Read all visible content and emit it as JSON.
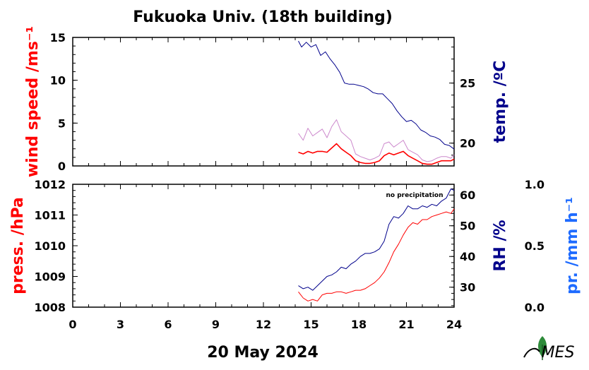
{
  "title": "Fukuoka Univ. (18th building)",
  "date_label": "20 May 2024",
  "top_panel": {
    "left_axis_label": "wind speed /ms⁻¹",
    "right_axis_label": "temp. /ºC"
  },
  "bottom_panel": {
    "left_axis_label": "press. /hPa",
    "right_axis_label": "RH /%",
    "far_axis_label": "pr. /mm h⁻¹",
    "annotation": "no precipitation"
  },
  "colors": {
    "wind": "#ff0000",
    "wind_gust": "#cc88cc",
    "temperature": "#00008b",
    "pressure": "#ff0000",
    "humidity": "#00008b",
    "precipitation": "#1e6bff"
  },
  "logo": {
    "icon": "leaf-logo-icon",
    "text": "MES"
  },
  "chart_data": [
    {
      "type": "line",
      "panel": "top",
      "xlabel": "20 May 2024",
      "x_ticks": [
        "0",
        "3",
        "6",
        "9",
        "12",
        "15",
        "18",
        "21",
        "24"
      ],
      "xlim": [
        0,
        24
      ],
      "y_left": {
        "label": "wind speed /ms⁻¹",
        "lim": [
          0,
          15
        ],
        "ticks": [
          "0",
          "5",
          "10",
          "15"
        ]
      },
      "y_right": {
        "label": "temp. /ºC",
        "lim": [
          18.1,
          28.8
        ],
        "ticks": [
          "20",
          "25"
        ]
      },
      "series": [
        {
          "axis": "left",
          "color": "#cc88cc",
          "width": 1,
          "x": [
            14.2,
            14.5,
            14.8,
            15.1,
            15.4,
            15.7,
            16.0,
            16.3,
            16.6,
            16.9,
            17.2,
            17.5,
            17.8,
            18.1,
            18.4,
            18.7,
            19.0,
            19.3,
            19.6,
            19.9,
            20.2,
            20.5,
            20.8,
            21.1,
            21.4,
            21.7,
            22.0,
            22.3,
            22.6,
            22.9,
            23.2,
            23.5,
            23.8,
            24.0
          ],
          "y": [
            3.8,
            3.0,
            4.4,
            3.5,
            3.9,
            4.3,
            3.3,
            4.6,
            5.4,
            4.0,
            3.5,
            3.0,
            1.4,
            1.1,
            0.9,
            0.7,
            0.9,
            1.2,
            2.6,
            2.8,
            2.2,
            2.6,
            3.0,
            1.9,
            1.6,
            1.3,
            0.7,
            0.5,
            0.6,
            0.9,
            1.1,
            1.1,
            0.9,
            1.3
          ]
        },
        {
          "axis": "left",
          "color": "#ff0000",
          "width": 1.6,
          "x": [
            14.2,
            14.5,
            14.8,
            15.1,
            15.4,
            15.7,
            16.0,
            16.3,
            16.6,
            16.9,
            17.2,
            17.5,
            17.8,
            18.1,
            18.4,
            18.7,
            19.0,
            19.3,
            19.6,
            19.9,
            20.2,
            20.5,
            20.8,
            21.1,
            21.4,
            21.7,
            22.0,
            22.3,
            22.6,
            22.9,
            23.2,
            23.5,
            23.8,
            24.0
          ],
          "y": [
            1.6,
            1.4,
            1.7,
            1.5,
            1.7,
            1.7,
            1.6,
            2.1,
            2.6,
            2.0,
            1.6,
            1.2,
            0.6,
            0.4,
            0.3,
            0.3,
            0.4,
            0.6,
            1.2,
            1.5,
            1.3,
            1.5,
            1.7,
            1.2,
            0.9,
            0.6,
            0.3,
            0.2,
            0.2,
            0.4,
            0.6,
            0.6,
            0.6,
            0.8
          ]
        },
        {
          "axis": "right",
          "color": "#00008b",
          "width": 1,
          "x": [
            14.2,
            14.4,
            14.7,
            15.0,
            15.3,
            15.6,
            15.9,
            16.2,
            16.5,
            16.8,
            17.1,
            17.4,
            17.7,
            18.0,
            18.3,
            18.6,
            18.9,
            19.2,
            19.5,
            19.8,
            20.1,
            20.4,
            20.7,
            21.0,
            21.3,
            21.6,
            21.9,
            22.2,
            22.5,
            22.8,
            23.1,
            23.4,
            23.7,
            24.0
          ],
          "y": [
            28.5,
            28.0,
            28.4,
            28.0,
            28.2,
            27.3,
            27.6,
            27.0,
            26.5,
            25.9,
            25.0,
            24.9,
            24.9,
            24.8,
            24.7,
            24.5,
            24.2,
            24.1,
            24.1,
            23.7,
            23.3,
            22.7,
            22.2,
            21.8,
            21.9,
            21.6,
            21.1,
            20.9,
            20.6,
            20.5,
            20.3,
            19.9,
            19.8,
            19.5
          ]
        }
      ]
    },
    {
      "type": "line",
      "panel": "bottom",
      "xlabel": "20 May 2024",
      "x_ticks": [
        "0",
        "3",
        "6",
        "9",
        "12",
        "15",
        "18",
        "21",
        "24"
      ],
      "xlim": [
        0,
        24
      ],
      "y_left": {
        "label": "press. /hPa",
        "lim": [
          1008,
          1012
        ],
        "ticks": [
          "1008",
          "1009",
          "1010",
          "1011",
          "1012"
        ]
      },
      "y_right": {
        "label": "RH /%",
        "lim": [
          23.5,
          63.5
        ],
        "ticks": [
          "30",
          "40",
          "50",
          "60"
        ]
      },
      "y_far": {
        "label": "pr. /mm h⁻¹",
        "lim": [
          0,
          1
        ],
        "ticks": [
          "0.0",
          "0.5",
          "1.0"
        ]
      },
      "annotation": "no precipitation",
      "series": [
        {
          "axis": "left",
          "color": "#ff0000",
          "width": 1,
          "x": [
            14.2,
            14.5,
            14.8,
            15.1,
            15.4,
            15.7,
            16.0,
            16.3,
            16.6,
            16.9,
            17.2,
            17.5,
            17.8,
            18.1,
            18.4,
            18.7,
            19.0,
            19.3,
            19.6,
            19.9,
            20.2,
            20.5,
            20.8,
            21.1,
            21.4,
            21.7,
            22.0,
            22.3,
            22.6,
            22.9,
            23.2,
            23.5,
            23.8,
            24.0
          ],
          "y": [
            1008.5,
            1008.3,
            1008.2,
            1008.25,
            1008.2,
            1008.4,
            1008.45,
            1008.45,
            1008.5,
            1008.5,
            1008.45,
            1008.5,
            1008.55,
            1008.55,
            1008.6,
            1008.7,
            1008.8,
            1008.95,
            1009.15,
            1009.45,
            1009.8,
            1010.05,
            1010.35,
            1010.6,
            1010.75,
            1010.7,
            1010.85,
            1010.85,
            1010.95,
            1011.0,
            1011.05,
            1011.1,
            1011.05,
            1011.2
          ]
        },
        {
          "axis": "right",
          "color": "#00008b",
          "width": 1,
          "x": [
            14.2,
            14.5,
            14.8,
            15.1,
            15.4,
            15.7,
            16.0,
            16.3,
            16.6,
            16.9,
            17.2,
            17.5,
            17.8,
            18.1,
            18.4,
            18.7,
            19.0,
            19.3,
            19.6,
            19.9,
            20.2,
            20.5,
            20.8,
            21.1,
            21.4,
            21.7,
            22.0,
            22.3,
            22.6,
            22.9,
            23.2,
            23.5,
            23.8,
            24.0
          ],
          "y": [
            30.5,
            29.5,
            30.0,
            29.0,
            30.5,
            32.0,
            33.5,
            34.0,
            35.0,
            36.5,
            36.0,
            37.5,
            38.5,
            40.0,
            41.0,
            41.0,
            41.5,
            42.5,
            45.0,
            50.5,
            53.0,
            52.5,
            54.0,
            56.5,
            55.5,
            55.5,
            56.5,
            56.0,
            57.0,
            56.5,
            58.0,
            59.0,
            62.0,
            61.5
          ]
        }
      ]
    }
  ]
}
